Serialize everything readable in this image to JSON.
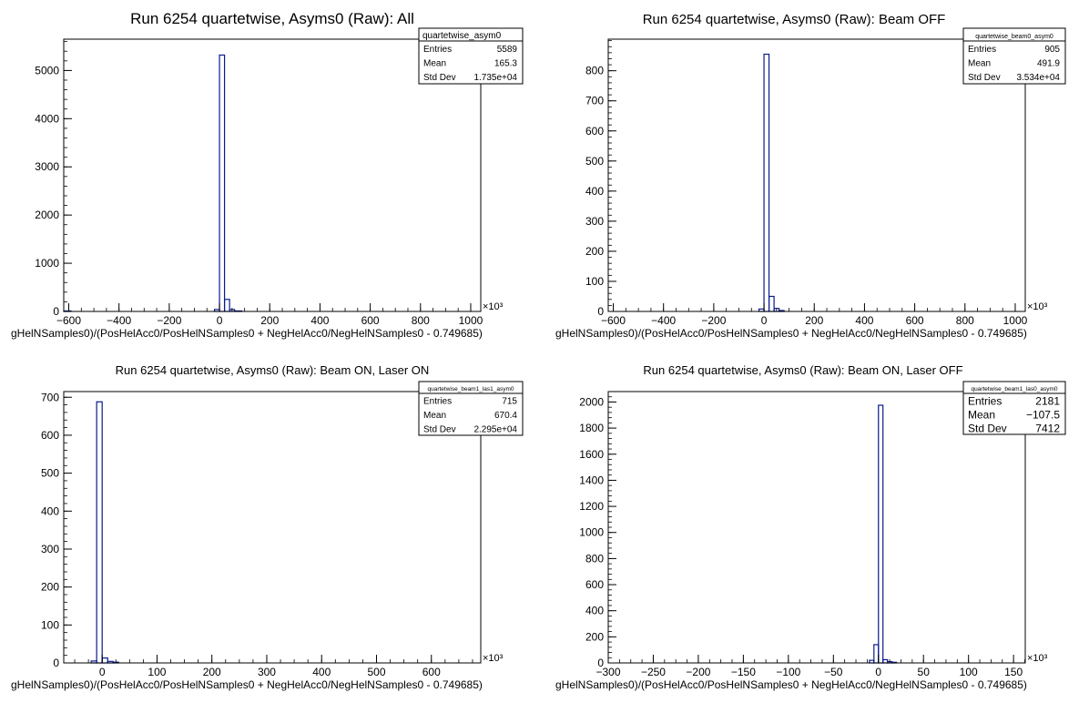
{
  "colors": {
    "histogram": "#0a1a8c",
    "frame": "#000000",
    "background": "#ffffff"
  },
  "chart_data": [
    {
      "type": "bar",
      "title": "Run 6254 quartetwise, Asyms0 (Raw): All",
      "xlabel": "gHelNSamples0)/(PosHelAcc0/PosHelNSamples0 + NegHelAcc0/NegHelNSamples0 - 0.749685)",
      "xunit": "×10³",
      "xlim": [
        -620,
        1040
      ],
      "ylim": [
        0,
        5650
      ],
      "xticks": [
        -600,
        -400,
        -200,
        0,
        200,
        400,
        600,
        800,
        1000
      ],
      "xtick_labels": [
        "−600",
        "−400",
        "−200",
        "0",
        "200",
        "400",
        "600",
        "800",
        "1000"
      ],
      "yticks": [
        0,
        1000,
        2000,
        3000,
        4000,
        5000
      ],
      "bins": [
        [
          -620,
          10
        ],
        [
          -20,
          40
        ],
        [
          0,
          5320
        ],
        [
          20,
          250
        ],
        [
          40,
          40
        ],
        [
          60,
          10
        ]
      ],
      "stats": {
        "name": "quartetwise_asym0",
        "rows": [
          [
            "Entries",
            "5589"
          ],
          [
            "Mean",
            "165.3"
          ],
          [
            "Std Dev",
            "1.735e+04"
          ]
        ]
      }
    },
    {
      "type": "bar",
      "title": "Run 6254 quartetwise, Asyms0 (Raw): Beam OFF",
      "xlabel": "gHelNSamples0)/(PosHelAcc0/PosHelNSamples0 + NegHelAcc0/NegHelNSamples0 - 0.749685)",
      "xunit": "×10³",
      "xlim": [
        -620,
        1040
      ],
      "ylim": [
        0,
        905
      ],
      "xticks": [
        -600,
        -400,
        -200,
        0,
        200,
        400,
        600,
        800,
        1000
      ],
      "xtick_labels": [
        "−600",
        "−400",
        "−200",
        "0",
        "200",
        "400",
        "600",
        "800",
        "1000"
      ],
      "yticks": [
        0,
        100,
        200,
        300,
        400,
        500,
        600,
        700,
        800
      ],
      "bins": [
        [
          -20,
          8
        ],
        [
          0,
          855
        ],
        [
          20,
          50
        ],
        [
          40,
          10
        ],
        [
          60,
          3
        ]
      ],
      "stats": {
        "name": "quartetwise_beam0_asym0",
        "rows": [
          [
            "Entries",
            "905"
          ],
          [
            "Mean",
            "491.9"
          ],
          [
            "Std Dev",
            "3.534e+04"
          ]
        ]
      }
    },
    {
      "type": "bar",
      "title": "Run 6254 quartetwise, Asyms0 (Raw): Beam ON, Laser ON",
      "xlabel": "gHelNSamples0)/(PosHelAcc0/PosHelNSamples0 + NegHelAcc0/NegHelNSamples0 - 0.749685)",
      "xunit": "×10³",
      "xlim": [
        -70,
        690
      ],
      "ylim": [
        0,
        715
      ],
      "xticks": [
        0,
        100,
        200,
        300,
        400,
        500,
        600
      ],
      "xtick_labels": [
        "0",
        "100",
        "200",
        "300",
        "400",
        "500",
        "600"
      ],
      "yticks": [
        0,
        100,
        200,
        300,
        400,
        500,
        600,
        700
      ],
      "bins": [
        [
          -20,
          5
        ],
        [
          -10,
          688
        ],
        [
          0,
          13
        ],
        [
          10,
          4
        ],
        [
          20,
          2
        ]
      ],
      "stats": {
        "name": "quartetwise_beam1_las1_asym0",
        "rows": [
          [
            "Entries",
            "715"
          ],
          [
            "Mean",
            "670.4"
          ],
          [
            "Std Dev",
            "2.295e+04"
          ]
        ]
      }
    },
    {
      "type": "bar",
      "title": "Run 6254 quartetwise, Asyms0 (Raw): Beam ON, Laser OFF",
      "xlabel": "gHelNSamples0)/(PosHelAcc0/PosHelNSamples0 + NegHelAcc0/NegHelNSamples0 - 0.749685)",
      "xunit": "×10³",
      "xlim": [
        -300,
        163
      ],
      "ylim": [
        0,
        2080
      ],
      "xticks": [
        -300,
        -250,
        -200,
        -150,
        -100,
        -50,
        0,
        50,
        100,
        150
      ],
      "xtick_labels": [
        "−300",
        "−250",
        "−200",
        "−150",
        "−100",
        "−50",
        "0",
        "50",
        "100",
        "150"
      ],
      "yticks": [
        0,
        200,
        400,
        600,
        800,
        1000,
        1200,
        1400,
        1600,
        1800,
        2000
      ],
      "bins": [
        [
          -10,
          20
        ],
        [
          -5,
          140
        ],
        [
          0,
          1975
        ],
        [
          5,
          25
        ],
        [
          10,
          10
        ],
        [
          15,
          5
        ]
      ],
      "stats": {
        "name": "quartetwise_beam1_las0_asym0",
        "rows": [
          [
            "Entries",
            "2181"
          ],
          [
            "Mean",
            "−107.5"
          ],
          [
            "Std Dev",
            "7412"
          ]
        ]
      }
    }
  ]
}
